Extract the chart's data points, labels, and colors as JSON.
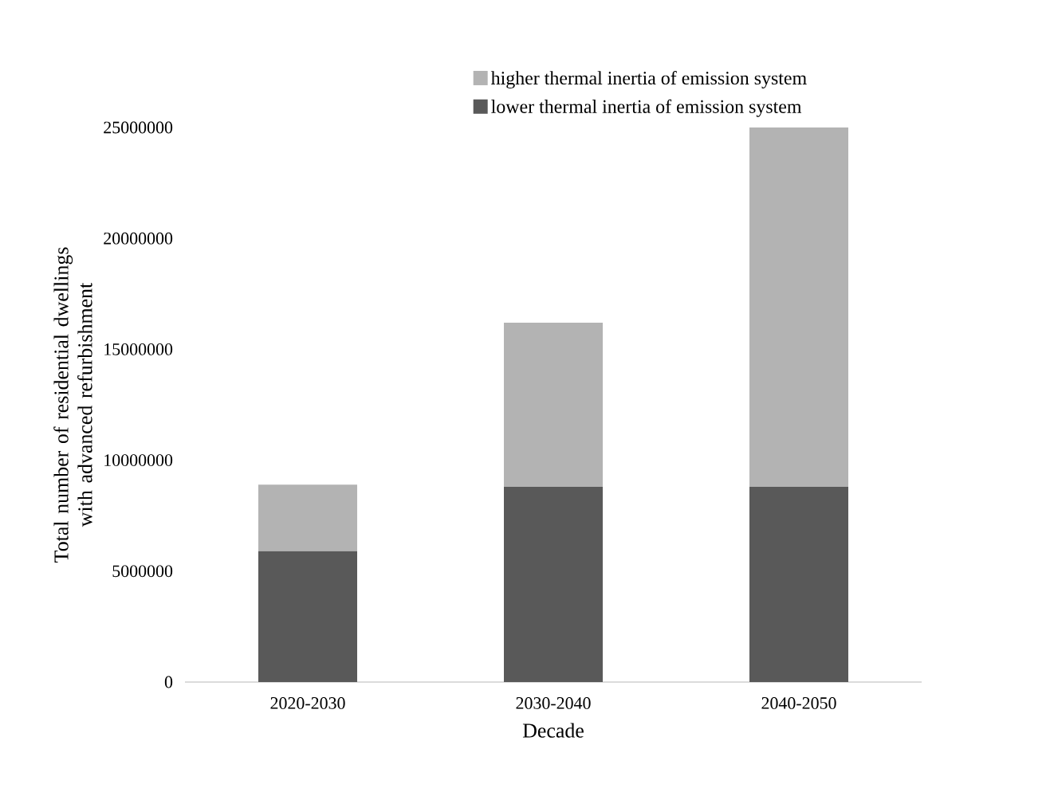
{
  "chart_data": {
    "type": "bar",
    "stacked": true,
    "xlabel": "Decade",
    "ylabel": "Total number of residential dwellings with advanced refurbishment",
    "categories": [
      "2020-2030",
      "2030-2040",
      "2040-2050"
    ],
    "series": [
      {
        "name": "lower thermal inertia of emission system",
        "color": "#595959",
        "values": [
          5900000,
          8800000,
          8800000
        ]
      },
      {
        "name": "higher thermal inertia of emission system",
        "color": "#b3b3b3",
        "values": [
          3000000,
          7400000,
          16200000
        ]
      }
    ],
    "ylim": [
      0,
      25000000
    ],
    "yticks": [
      0,
      5000000,
      10000000,
      15000000,
      20000000,
      25000000
    ],
    "legend": "top",
    "grid": false
  }
}
